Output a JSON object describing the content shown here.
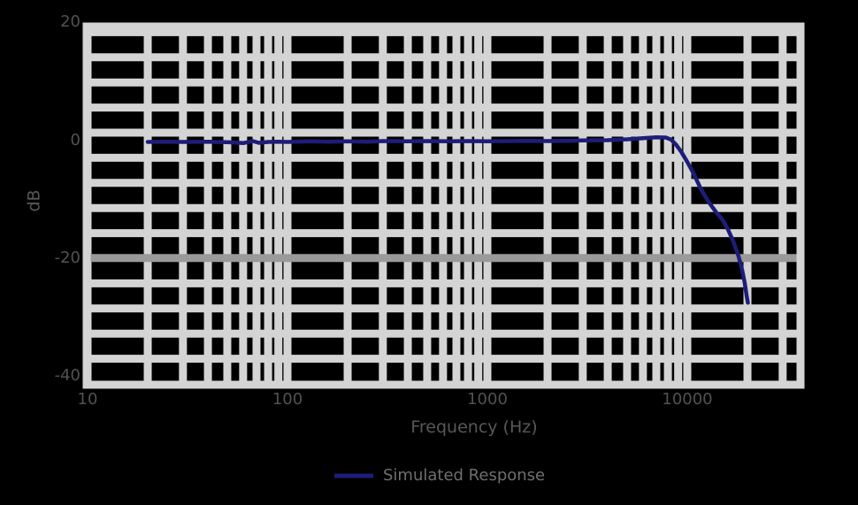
{
  "figure": {
    "background_color": "#000000",
    "xlabel": "Frequency (Hz)",
    "ylabel": "dB",
    "legend": {
      "label": "Simulated Response"
    }
  },
  "colors": {
    "line": "#1d1d7a",
    "grid_minor": "#d4d4d4",
    "grid_major": "#9a9a9a",
    "border": "#d4d4d4",
    "tick_label": "#525252",
    "axis_label": "#585858",
    "legend_text": "#6f6f6f"
  },
  "chart_data": {
    "type": "line",
    "title": "",
    "xlabel": "Frequency (Hz)",
    "ylabel": "dB",
    "x_scale": "log",
    "grid": "on",
    "legend_position": "bottom-center",
    "x_range_hz": [
      10,
      36800
    ],
    "y_range_db": [
      -41.5,
      19.3
    ],
    "x_ticks_hz": [
      10,
      100,
      1000,
      10000
    ],
    "x_tick_labels": [
      "10",
      "100",
      "1000",
      "10000"
    ],
    "y_ticks_db": [
      20,
      0,
      -20,
      -40
    ],
    "y_tick_labels": [
      "20",
      "0",
      "-20",
      "-40"
    ],
    "x_minor_multiples": [
      2,
      3,
      4,
      5,
      6,
      7,
      8,
      9
    ],
    "y_minor_grid_db": [
      18.33,
      14.07,
      9.8,
      5.54,
      1.28,
      -2.99,
      -7.25,
      -11.52,
      -15.78,
      -24.31,
      -28.57,
      -32.84,
      -37.1
    ],
    "y_major_grid_db": [
      -20
    ],
    "series": [
      {
        "name": "Simulated Response",
        "color": "#1d1d7a",
        "points_hz_db": [
          [
            20,
            -0.3
          ],
          [
            25,
            -0.25
          ],
          [
            30,
            -0.3
          ],
          [
            40,
            -0.25
          ],
          [
            50,
            -0.35
          ],
          [
            60,
            -0.5
          ],
          [
            67,
            -0.15
          ],
          [
            72,
            -0.45
          ],
          [
            80,
            -0.3
          ],
          [
            90,
            -0.25
          ],
          [
            100,
            -0.3
          ],
          [
            130,
            -0.2
          ],
          [
            160,
            -0.25
          ],
          [
            200,
            -0.2
          ],
          [
            250,
            -0.25
          ],
          [
            300,
            -0.15
          ],
          [
            400,
            -0.2
          ],
          [
            500,
            -0.15
          ],
          [
            650,
            -0.2
          ],
          [
            800,
            -0.15
          ],
          [
            1000,
            -0.2
          ],
          [
            1300,
            -0.15
          ],
          [
            1600,
            -0.1
          ],
          [
            2000,
            -0.15
          ],
          [
            2500,
            -0.1
          ],
          [
            3000,
            -0.05
          ],
          [
            4000,
            0.0
          ],
          [
            5000,
            0.15
          ],
          [
            6000,
            0.35
          ],
          [
            7000,
            0.5
          ],
          [
            7800,
            0.45
          ],
          [
            8300,
            0.1
          ],
          [
            8800,
            -0.8
          ],
          [
            9300,
            -1.9
          ],
          [
            10000,
            -3.7
          ],
          [
            10800,
            -5.8
          ],
          [
            11700,
            -8.3
          ],
          [
            12800,
            -10.5
          ],
          [
            14000,
            -12.3
          ],
          [
            15000,
            -13.5
          ],
          [
            16000,
            -15.2
          ],
          [
            17000,
            -17.2
          ],
          [
            18000,
            -19.6
          ],
          [
            18800,
            -22.0
          ],
          [
            19400,
            -24.3
          ],
          [
            19800,
            -26.3
          ],
          [
            20100,
            -27.6
          ]
        ]
      }
    ]
  }
}
